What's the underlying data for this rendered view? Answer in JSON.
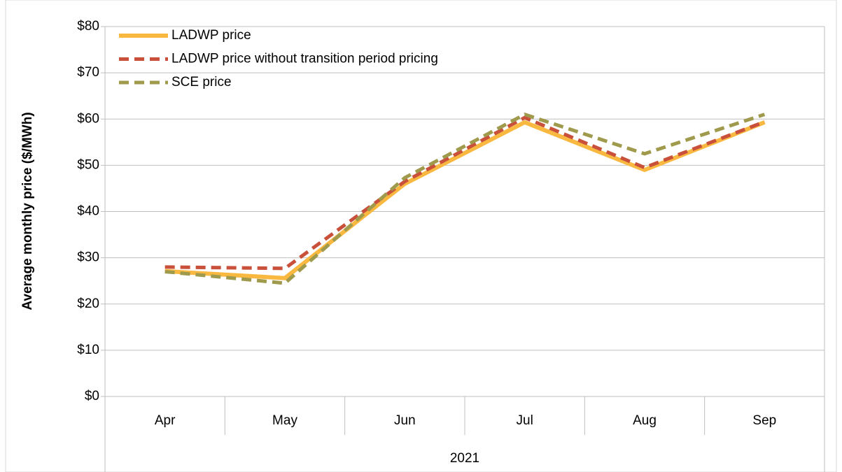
{
  "chart_data": {
    "type": "line",
    "y_axis_label": "Average monthly price ($/MWh)",
    "categories": [
      "Apr",
      "May",
      "Jun",
      "Jul",
      "Aug",
      "Sep"
    ],
    "category_group": "2021",
    "series": [
      {
        "name": "LADWP price",
        "color": "#f9b83f",
        "dash": "solid",
        "values": [
          27.1,
          25.6,
          46.0,
          59.3,
          49.0,
          59.3
        ]
      },
      {
        "name": "LADWP price without transition period pricing",
        "color": "#c9503a",
        "dash": "dashed",
        "values": [
          28.0,
          27.7,
          46.5,
          60.3,
          49.5,
          59.4
        ]
      },
      {
        "name": "SCE price",
        "color": "#9f9a4c",
        "dash": "dashed",
        "values": [
          27.0,
          24.5,
          47.3,
          61.0,
          52.5,
          61.0
        ]
      }
    ],
    "ylim": [
      0,
      80
    ],
    "yticks": [
      {
        "value": 0,
        "label": "$0"
      },
      {
        "value": 10,
        "label": "$10"
      },
      {
        "value": 20,
        "label": "$20"
      },
      {
        "value": 30,
        "label": "$30"
      },
      {
        "value": 40,
        "label": "$40"
      },
      {
        "value": 50,
        "label": "$50"
      },
      {
        "value": 60,
        "label": "$60"
      },
      {
        "value": 70,
        "label": "$70"
      },
      {
        "value": 80,
        "label": "$80"
      }
    ],
    "grid": true,
    "legend": "top-left"
  }
}
